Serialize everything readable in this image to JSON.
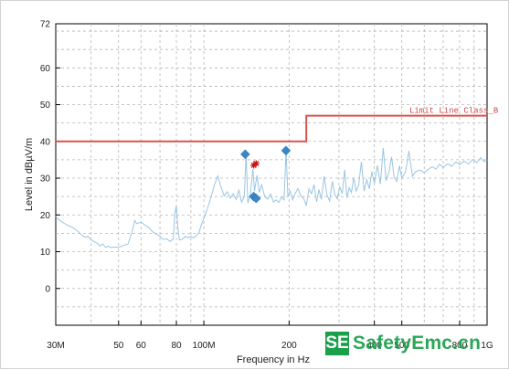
{
  "chart_data": {
    "type": "line",
    "xlabel": "Frequency in Hz",
    "ylabel": "Level in dBµV/m",
    "xscale": "log",
    "xlim": [
      30000000,
      1000000000
    ],
    "ylim": [
      -10,
      72
    ],
    "grid": true,
    "x_tick_labels": [
      {
        "value": 30000000,
        "label": "30M"
      },
      {
        "value": 50000000,
        "label": "50"
      },
      {
        "value": 60000000,
        "label": "60"
      },
      {
        "value": 80000000,
        "label": "80"
      },
      {
        "value": 100000000,
        "label": "100M"
      },
      {
        "value": 200000000,
        "label": "200"
      },
      {
        "value": 400000000,
        "label": "400"
      },
      {
        "value": 500000000,
        "label": "500"
      },
      {
        "value": 800000000,
        "label": "800"
      },
      {
        "value": 1000000000,
        "label": "1G"
      }
    ],
    "y_ticks": [
      0,
      10,
      20,
      30,
      40,
      50,
      60,
      72
    ],
    "limit_line": {
      "label": "Limit Line Class_B",
      "color": "#d9534f",
      "segments": [
        {
          "x_start": 30000000,
          "x_end": 230000000,
          "level": 40
        },
        {
          "x_start": 230000000,
          "x_end": 1000000000,
          "level": 47
        }
      ]
    },
    "series": [
      {
        "color": "#9ac5e3",
        "points": [
          [
            30000000,
            19.5
          ],
          [
            31000000,
            18.5
          ],
          [
            32000000,
            17.8
          ],
          [
            33000000,
            17.2
          ],
          [
            34000000,
            16.8
          ],
          [
            35000000,
            16.2
          ],
          [
            36000000,
            15.5
          ],
          [
            37000000,
            14.6
          ],
          [
            38000000,
            13.9
          ],
          [
            39000000,
            14.2
          ],
          [
            40000000,
            13.2
          ],
          [
            41000000,
            12.7
          ],
          [
            42000000,
            12.3
          ],
          [
            43000000,
            11.6
          ],
          [
            44000000,
            12.1
          ],
          [
            45000000,
            11.2
          ],
          [
            46000000,
            11.5
          ],
          [
            47000000,
            11.1
          ],
          [
            48000000,
            11.3
          ],
          [
            50000000,
            11.2
          ],
          [
            52000000,
            11.7
          ],
          [
            54000000,
            12.1
          ],
          [
            56000000,
            15.8
          ],
          [
            57000000,
            18.5
          ],
          [
            58000000,
            17.6
          ],
          [
            60000000,
            18.1
          ],
          [
            62000000,
            17.2
          ],
          [
            64000000,
            16.5
          ],
          [
            66000000,
            15.4
          ],
          [
            68000000,
            14.8
          ],
          [
            70000000,
            14.2
          ],
          [
            72000000,
            13.3
          ],
          [
            74000000,
            13.5
          ],
          [
            76000000,
            12.8
          ],
          [
            78000000,
            13.4
          ],
          [
            79000000,
            20.5
          ],
          [
            80000000,
            22.5
          ],
          [
            81000000,
            16.3
          ],
          [
            82000000,
            13.2
          ],
          [
            84000000,
            13.4
          ],
          [
            86000000,
            14.1
          ],
          [
            88000000,
            13.8
          ],
          [
            90000000,
            14.2
          ],
          [
            92000000,
            13.7
          ],
          [
            94000000,
            14.5
          ],
          [
            96000000,
            15.1
          ],
          [
            98000000,
            17.3
          ],
          [
            100000000,
            19.1
          ],
          [
            103000000,
            21.7
          ],
          [
            106000000,
            24.8
          ],
          [
            109000000,
            28.2
          ],
          [
            112000000,
            30.6
          ],
          [
            115000000,
            27.5
          ],
          [
            118000000,
            25.2
          ],
          [
            121000000,
            26.3
          ],
          [
            124000000,
            24.6
          ],
          [
            127000000,
            25.8
          ],
          [
            130000000,
            24.2
          ],
          [
            133000000,
            26.7
          ],
          [
            136000000,
            23.5
          ],
          [
            139000000,
            25.1
          ],
          [
            141000000,
            36.8
          ],
          [
            143000000,
            23.2
          ],
          [
            146000000,
            25.6
          ],
          [
            149000000,
            32.5
          ],
          [
            151000000,
            26.5
          ],
          [
            154000000,
            30.8
          ],
          [
            157000000,
            26.1
          ],
          [
            160000000,
            28.2
          ],
          [
            164000000,
            25.1
          ],
          [
            168000000,
            24.3
          ],
          [
            172000000,
            25.7
          ],
          [
            176000000,
            23.5
          ],
          [
            180000000,
            24.1
          ],
          [
            184000000,
            23.4
          ],
          [
            188000000,
            24.8
          ],
          [
            192000000,
            24.1
          ],
          [
            195000000,
            37.8
          ],
          [
            198000000,
            25.2
          ],
          [
            202000000,
            26.5
          ],
          [
            206000000,
            24.1
          ],
          [
            210000000,
            25.8
          ],
          [
            215000000,
            27.2
          ],
          [
            220000000,
            25.1
          ],
          [
            225000000,
            24.6
          ],
          [
            230000000,
            22.5
          ],
          [
            235000000,
            27.1
          ],
          [
            240000000,
            25.8
          ],
          [
            245000000,
            28.3
          ],
          [
            250000000,
            23.6
          ],
          [
            255000000,
            26.9
          ],
          [
            260000000,
            24.2
          ],
          [
            266000000,
            30.5
          ],
          [
            272000000,
            25.4
          ],
          [
            278000000,
            23.8
          ],
          [
            284000000,
            29.1
          ],
          [
            290000000,
            25.5
          ],
          [
            296000000,
            24.4
          ],
          [
            302000000,
            27.6
          ],
          [
            308000000,
            25.8
          ],
          [
            314000000,
            32.3
          ],
          [
            320000000,
            24.7
          ],
          [
            326000000,
            27.4
          ],
          [
            332000000,
            26.1
          ],
          [
            338000000,
            30.2
          ],
          [
            345000000,
            26.5
          ],
          [
            352000000,
            28.1
          ],
          [
            360000000,
            34.5
          ],
          [
            368000000,
            26.5
          ],
          [
            376000000,
            29.6
          ],
          [
            384000000,
            27.1
          ],
          [
            392000000,
            31.8
          ],
          [
            400000000,
            28.6
          ],
          [
            410000000,
            33.5
          ],
          [
            420000000,
            28.4
          ],
          [
            430000000,
            38.2
          ],
          [
            440000000,
            29.3
          ],
          [
            450000000,
            31.6
          ],
          [
            460000000,
            35.8
          ],
          [
            470000000,
            30.2
          ],
          [
            480000000,
            29.1
          ],
          [
            490000000,
            33.4
          ],
          [
            500000000,
            30.1
          ],
          [
            515000000,
            31.6
          ],
          [
            530000000,
            37.4
          ],
          [
            545000000,
            30.5
          ],
          [
            560000000,
            31.8
          ],
          [
            580000000,
            32.2
          ],
          [
            600000000,
            31.5
          ],
          [
            620000000,
            32.4
          ],
          [
            640000000,
            33.1
          ],
          [
            660000000,
            32.5
          ],
          [
            680000000,
            33.8
          ],
          [
            700000000,
            32.9
          ],
          [
            725000000,
            33.9
          ],
          [
            750000000,
            33.2
          ],
          [
            775000000,
            34.4
          ],
          [
            800000000,
            33.7
          ],
          [
            830000000,
            34.6
          ],
          [
            860000000,
            33.9
          ],
          [
            890000000,
            35.1
          ],
          [
            920000000,
            34.2
          ],
          [
            950000000,
            35.6
          ],
          [
            975000000,
            34.5
          ],
          [
            1000000000,
            35.0
          ]
        ]
      }
    ],
    "quasi_peak_markers": [
      {
        "x": 140000000,
        "y": 36.5
      },
      {
        "x": 150000000,
        "y": 25.0
      },
      {
        "x": 153000000,
        "y": 24.5
      },
      {
        "x": 195000000,
        "y": 37.5
      }
    ],
    "peak_markers": [
      {
        "x": 150000000,
        "y": 33.5
      },
      {
        "x": 153000000,
        "y": 34.0
      }
    ]
  },
  "logo": {
    "mark": "SE",
    "text": "SafetyEmc.cn"
  }
}
